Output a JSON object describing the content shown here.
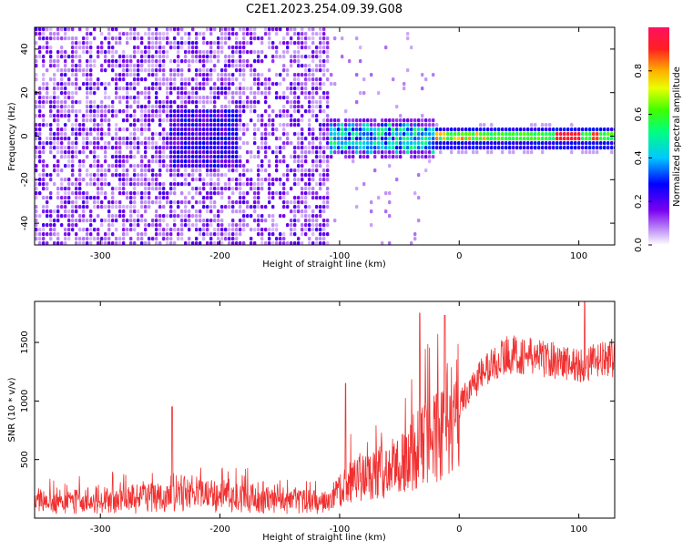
{
  "title": "C2E1.2023.254.09.39.G08",
  "chart_data": [
    {
      "type": "heatmap",
      "title": "C2E1.2023.254.09.39.G08",
      "xlabel": "Height of straight line (km)",
      "ylabel": "Frequency (Hz)",
      "xlim": [
        -355,
        130
      ],
      "ylim": [
        -50,
        50
      ],
      "x_ticks": [
        "-300",
        "-200",
        "-100",
        "0",
        "100"
      ],
      "y_ticks": [
        "-40",
        "-20",
        "0",
        "20",
        "40"
      ],
      "colorbar": {
        "label": "Normalized spectral amplitude",
        "range": [
          0,
          1
        ],
        "ticks": [
          "0.0",
          "0.2",
          "0.4",
          "0.6",
          "0.8"
        ]
      },
      "features": [
        {
          "region": "noise",
          "x": [
            -355,
            -110
          ],
          "freq": [
            -50,
            50
          ],
          "amplitude": 0.1
        },
        {
          "region": "blob",
          "x": [
            -245,
            -185
          ],
          "freq": [
            -12,
            14
          ],
          "amplitude": 0.15
        },
        {
          "region": "signal",
          "x": [
            -112,
            -20
          ],
          "freq": [
            -6,
            6
          ],
          "amplitude": 0.45
        },
        {
          "region": "signal",
          "x": [
            -20,
            130
          ],
          "freq": [
            -2,
            2
          ],
          "amplitude": 0.6
        },
        {
          "region": "peak",
          "x": [
            80,
            100
          ],
          "freq": [
            -1,
            1
          ],
          "amplitude": 0.95
        }
      ]
    },
    {
      "type": "line",
      "xlabel": "Height of straight line (km)",
      "ylabel": "SNR (10 * v/v)",
      "xlim": [
        -355,
        130
      ],
      "ylim": [
        0,
        1850
      ],
      "x_ticks": [
        "-300",
        "-200",
        "-100",
        "0",
        "100"
      ],
      "y_ticks": [
        "500",
        "1000",
        "1500"
      ],
      "color": "#f03030",
      "envelope": {
        "x": [
          -355,
          -300,
          -250,
          -240,
          -220,
          -200,
          -150,
          -110,
          -90,
          -70,
          -50,
          -30,
          -10,
          5,
          20,
          40,
          60,
          80,
          100,
          130
        ],
        "y": [
          170,
          170,
          200,
          260,
          230,
          220,
          160,
          150,
          320,
          380,
          450,
          650,
          750,
          1050,
          1250,
          1400,
          1380,
          1350,
          1300,
          1370
        ]
      },
      "spikes": [
        {
          "x": -240,
          "y": 950
        },
        {
          "x": -95,
          "y": 1150
        },
        {
          "x": -33,
          "y": 1750
        },
        {
          "x": -12,
          "y": 1730
        },
        {
          "x": 105,
          "y": 1850
        }
      ]
    }
  ]
}
